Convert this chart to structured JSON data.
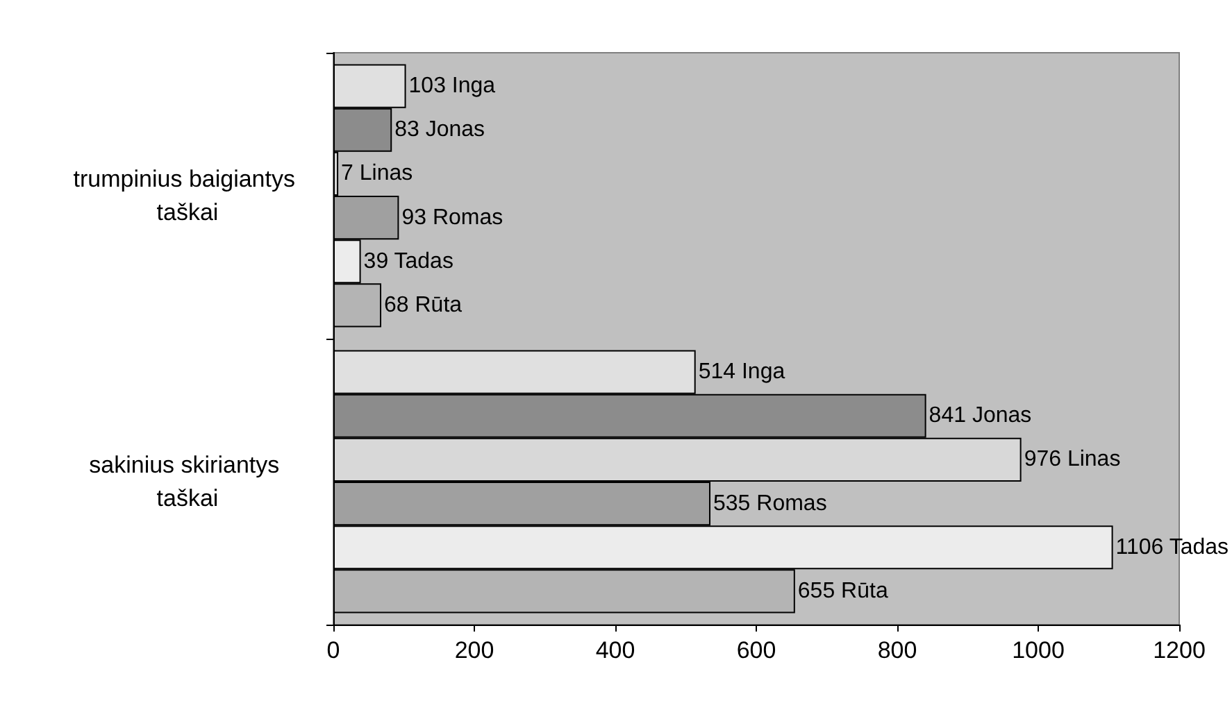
{
  "chart_data": {
    "type": "bar",
    "orientation": "horizontal",
    "categories": [
      "trumpinius baigiantys taškai",
      "sakinius skiriantys taškai"
    ],
    "series": [
      {
        "name": "Inga",
        "color": "#e0e0e0",
        "values": [
          103,
          514
        ]
      },
      {
        "name": "Jonas",
        "color": "#8c8c8c",
        "values": [
          83,
          841
        ]
      },
      {
        "name": "Linas",
        "color": "#d8d8d8",
        "values": [
          7,
          976
        ]
      },
      {
        "name": "Romas",
        "color": "#a0a0a0",
        "values": [
          93,
          535
        ]
      },
      {
        "name": "Tadas",
        "color": "#ececec",
        "values": [
          39,
          1106
        ]
      },
      {
        "name": "Rūta",
        "color": "#b4b4b4",
        "values": [
          68,
          655
        ]
      }
    ],
    "xlim": [
      0,
      1200
    ],
    "xticks": [
      0,
      200,
      400,
      600,
      800,
      1000,
      1200
    ],
    "grid": false,
    "legend": false,
    "data_labels": true
  }
}
